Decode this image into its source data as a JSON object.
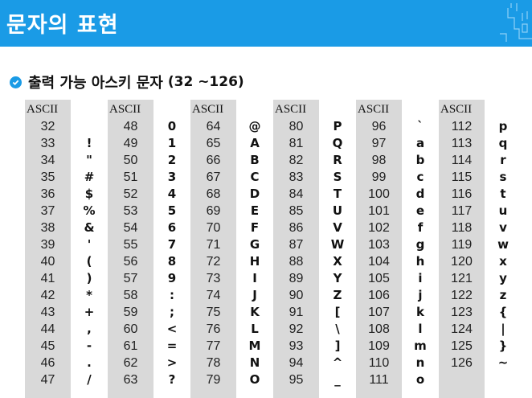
{
  "header": {
    "title": "문자의 표현"
  },
  "section": {
    "title": "출력 가능 아스키 문자",
    "range": "(32 ~126)"
  },
  "column_header": "ASCII",
  "columns": [
    {
      "codes": [
        "32",
        "33",
        "34",
        "35",
        "36",
        "37",
        "38",
        "39",
        "40",
        "41",
        "42",
        "43",
        "44",
        "45",
        "46",
        "47"
      ],
      "chars": [
        "",
        "!",
        "\"",
        "#",
        "$",
        "%",
        "&",
        "'",
        "(",
        ")",
        "*",
        "+",
        ",",
        "-",
        ".",
        "/"
      ]
    },
    {
      "codes": [
        "48",
        "49",
        "50",
        "51",
        "52",
        "53",
        "54",
        "55",
        "56",
        "57",
        "58",
        "59",
        "60",
        "61",
        "62",
        "63"
      ],
      "chars": [
        "0",
        "1",
        "2",
        "3",
        "4",
        "5",
        "6",
        "7",
        "8",
        "9",
        ":",
        ";",
        "<",
        "=",
        ">",
        "?"
      ]
    },
    {
      "codes": [
        "64",
        "65",
        "66",
        "67",
        "68",
        "69",
        "70",
        "71",
        "72",
        "73",
        "74",
        "75",
        "76",
        "77",
        "78",
        "79"
      ],
      "chars": [
        "@",
        "A",
        "B",
        "C",
        "D",
        "E",
        "F",
        "G",
        "H",
        "I",
        "J",
        "K",
        "L",
        "M",
        "N",
        "O"
      ]
    },
    {
      "codes": [
        "80",
        "81",
        "82",
        "83",
        "84",
        "85",
        "86",
        "87",
        "88",
        "89",
        "90",
        "91",
        "92",
        "93",
        "94",
        "95"
      ],
      "chars": [
        "P",
        "Q",
        "R",
        "S",
        "T",
        "U",
        "V",
        "W",
        "X",
        "Y",
        "Z",
        "[",
        "\\",
        "]",
        "^",
        "_"
      ]
    },
    {
      "codes": [
        "96",
        "97",
        "98",
        "99",
        "100",
        "101",
        "102",
        "103",
        "104",
        "105",
        "106",
        "107",
        "108",
        "109",
        "110",
        "111"
      ],
      "chars": [
        "`",
        "a",
        "b",
        "c",
        "d",
        "e",
        "f",
        "g",
        "h",
        "i",
        "j",
        "k",
        "l",
        "m",
        "n",
        "o"
      ]
    },
    {
      "codes": [
        "112",
        "113",
        "114",
        "115",
        "116",
        "117",
        "118",
        "119",
        "120",
        "121",
        "122",
        "123",
        "124",
        "125",
        "126"
      ],
      "chars": [
        "p",
        "q",
        "r",
        "s",
        "t",
        "u",
        "v",
        "w",
        "x",
        "y",
        "z",
        "{",
        "|",
        "}",
        "~"
      ]
    }
  ]
}
